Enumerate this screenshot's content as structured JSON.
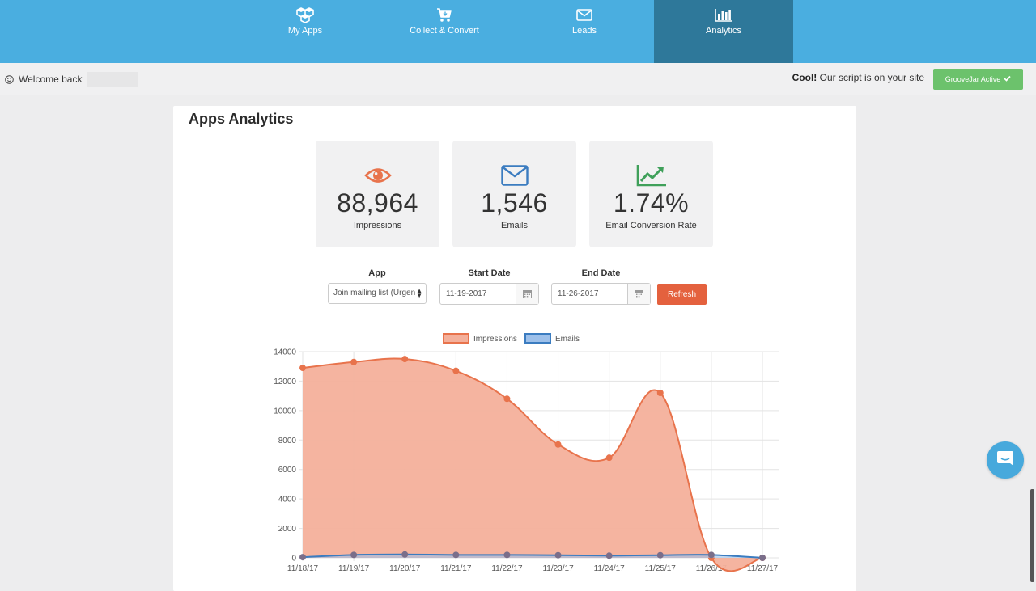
{
  "nav": {
    "items": [
      {
        "label": "My Apps",
        "icon": "cubes-icon"
      },
      {
        "label": "Collect & Convert",
        "icon": "cart-icon"
      },
      {
        "label": "Leads",
        "icon": "envelope-icon"
      },
      {
        "label": "Analytics",
        "icon": "bar-chart-icon",
        "active": true
      }
    ]
  },
  "subbar": {
    "welcome": "Welcome back",
    "cool_bold": "Cool!",
    "cool_text": "Our script is on your site",
    "active_label": "GrooveJar Active"
  },
  "panel": {
    "title": "Apps Analytics",
    "stats": [
      {
        "value": "88,964",
        "label": "Impressions",
        "icon": "eye-icon",
        "color": "#e8734c"
      },
      {
        "value": "1,546",
        "label": "Emails",
        "icon": "envelope-icon",
        "color": "#3b7cc0"
      },
      {
        "value": "1.74%",
        "label": "Email Conversion Rate",
        "icon": "trend-up-icon",
        "color": "#3fa05a"
      }
    ],
    "filters": {
      "app_label": "App",
      "app_value": "Join mailing list (Urgen",
      "start_label": "Start Date",
      "start_value": "11-19-2017",
      "end_label": "End Date",
      "end_value": "11-26-2017",
      "refresh_label": "Refresh"
    }
  },
  "colors": {
    "nav_bg": "#4aaee0",
    "nav_active": "#2e789a",
    "impressions": "#e8734c",
    "impressions_fill": "#f4b09b",
    "emails": "#3b7cc0",
    "emails_fill": "#9dc0ea",
    "refresh": "#e4613e",
    "active_badge": "#6cc26c"
  },
  "chart_data": {
    "type": "area",
    "categories": [
      "11/18/17",
      "11/19/17",
      "11/20/17",
      "11/21/17",
      "11/22/17",
      "11/23/17",
      "11/24/17",
      "11/25/17",
      "11/26/17",
      "11/27/17"
    ],
    "series": [
      {
        "name": "Impressions",
        "values": [
          12900,
          13300,
          13500,
          12700,
          10800,
          7700,
          6800,
          11200,
          0,
          0
        ]
      },
      {
        "name": "Emails",
        "values": [
          50,
          200,
          230,
          200,
          200,
          180,
          150,
          180,
          200,
          0
        ]
      }
    ],
    "y_ticks": [
      0,
      2000,
      4000,
      6000,
      8000,
      10000,
      12000,
      14000
    ],
    "y_tick_labels": [
      "0",
      "2000",
      "4000",
      "6000",
      "8000",
      "10000",
      "12000",
      "14000"
    ],
    "ylim": [
      0,
      14000
    ],
    "legend": "top-center",
    "grid": true
  }
}
